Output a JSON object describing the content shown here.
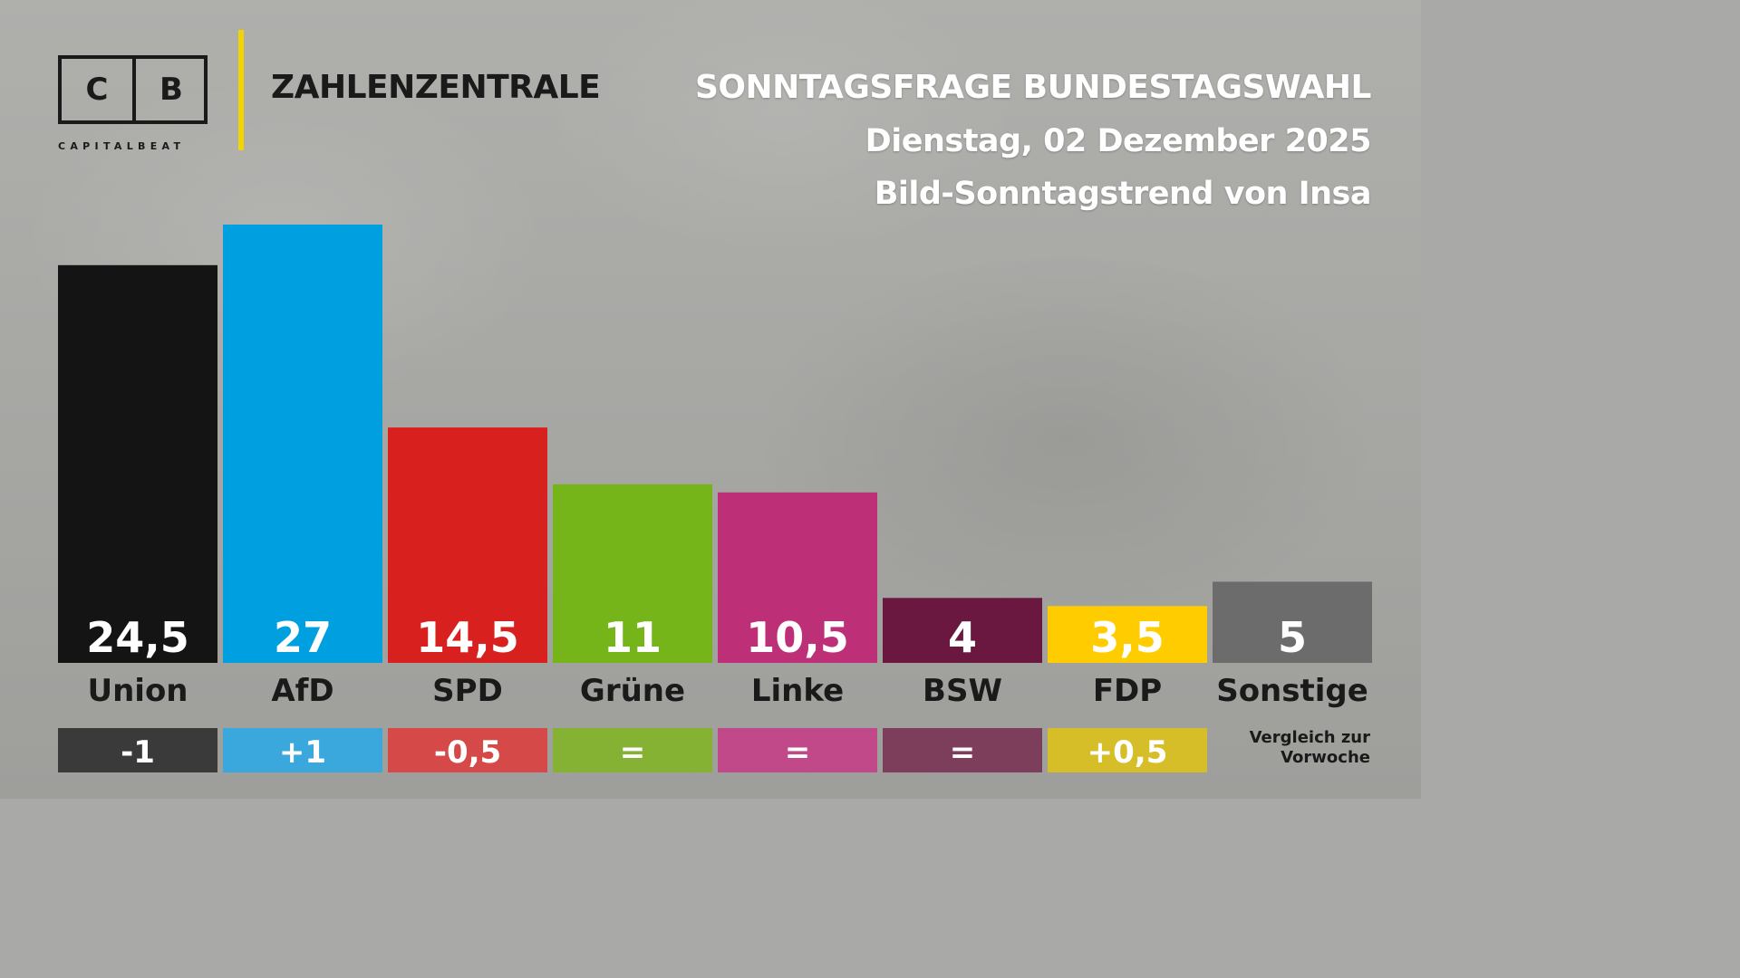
{
  "brand": {
    "logo_letters": [
      "C",
      "B"
    ],
    "logo_subtitle": "CAPITALBEAT",
    "section": "ZAHLENZENTRALE",
    "accent_color": "#f2d500"
  },
  "header": {
    "title": "SONNTAGSFRAGE BUNDESTAGSWAHL",
    "date": "Dienstag, 02 Dezember 2025",
    "source": "Bild-Sonntagstrend von Insa"
  },
  "compare_note": "Vergleich zur Vorwoche",
  "chart_data": {
    "type": "bar",
    "categories": [
      "Union",
      "AfD",
      "SPD",
      "Grüne",
      "Linke",
      "BSW",
      "FDP",
      "Sonstige"
    ],
    "values": [
      24.5,
      27,
      14.5,
      11,
      10.5,
      4,
      3.5,
      5
    ],
    "value_labels": [
      "24,5",
      "27",
      "14,5",
      "11",
      "10,5",
      "4",
      "3,5",
      "5"
    ],
    "changes": [
      "-1",
      "+1",
      "-0,5",
      "=",
      "=",
      "=",
      "+0,5",
      null
    ],
    "colors": [
      "#141414",
      "#00a0e0",
      "#d8201e",
      "#76b51a",
      "#bd3078",
      "#6a1840",
      "#ffcc00",
      "#6c6c6c"
    ],
    "change_colors": [
      "#3a3a3a",
      "#3aa8dd",
      "#d54a48",
      "#86b233",
      "#c1498a",
      "#7d3e5c",
      "#d6be29",
      null
    ],
    "ylim": [
      0,
      27
    ],
    "grid": false,
    "legend": "none"
  }
}
